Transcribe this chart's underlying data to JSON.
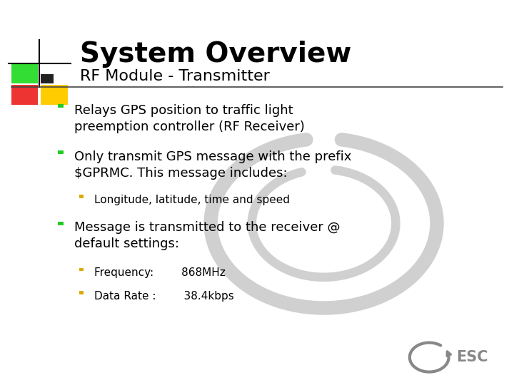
{
  "title": "System Overview",
  "subtitle": "RF Module - Transmitter",
  "background_color": "#ffffff",
  "title_color": "#000000",
  "subtitle_color": "#000000",
  "title_fontsize": 28,
  "subtitle_fontsize": 16,
  "bullet_fontsize": 13,
  "sub_bullet_fontsize": 11,
  "line_color": "#444444",
  "bullets": [
    {
      "level": 1,
      "text": "Relays GPS position to traffic light\npreemption controller (RF Receiver)",
      "bullet_color": "#22cc22"
    },
    {
      "level": 1,
      "text": "Only transmit GPS message with the prefix\n$GPRMC. This message includes:",
      "bullet_color": "#22cc22"
    },
    {
      "level": 2,
      "text": "Longitude, latitude, time and speed",
      "bullet_color": "#ddaa00"
    },
    {
      "level": 1,
      "text": "Message is transmitted to the receiver @\ndefault settings:",
      "bullet_color": "#22cc22"
    },
    {
      "level": 2,
      "text": "Frequency:        868MHz",
      "bullet_color": "#ddaa00"
    },
    {
      "level": 2,
      "text": "Data Rate :        38.4kbps",
      "bullet_color": "#ddaa00"
    }
  ],
  "logo_colors": {
    "green": "#33dd33",
    "red": "#ee3333",
    "yellow": "#ffcc00",
    "dark": "#222222"
  },
  "watermark_color": "#d0d0d0",
  "esc_color": "#888888"
}
